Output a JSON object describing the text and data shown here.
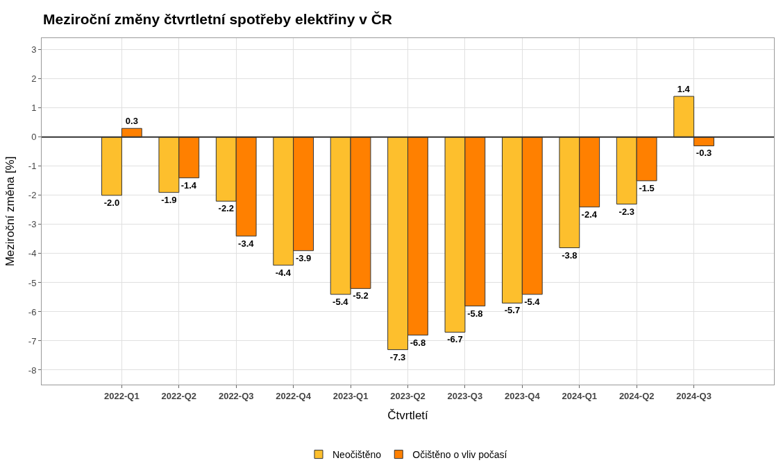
{
  "chart_data": {
    "type": "bar",
    "title": "Meziroční změny čtvrtletní spotřeby elektřiny v ČR",
    "xlabel": "Čtvrtletí",
    "ylabel": "Meziroční změna [%]",
    "categories": [
      "2022-Q1",
      "2022-Q2",
      "2022-Q3",
      "2022-Q4",
      "2023-Q1",
      "2023-Q2",
      "2023-Q3",
      "2023-Q4",
      "2024-Q1",
      "2024-Q2",
      "2024-Q3"
    ],
    "series": [
      {
        "name": "Neočištěno",
        "color": "#fdbf2d",
        "values": [
          -2.0,
          -1.9,
          -2.2,
          -4.4,
          -5.4,
          -7.3,
          -6.7,
          -5.7,
          -3.8,
          -2.3,
          1.4
        ],
        "value_labels": [
          "-2.0",
          "-1.9",
          "-2.2",
          "-4.4",
          "-5.4",
          "-7.3",
          "-6.7",
          "-5.7",
          "-3.8",
          "-2.3",
          "1.4"
        ]
      },
      {
        "name": "Očištěno o vliv počasí",
        "color": "#ff8000",
        "values": [
          0.3,
          -1.4,
          -3.4,
          -3.9,
          -5.2,
          -6.8,
          -5.8,
          -5.4,
          -2.4,
          -1.5,
          -0.3
        ],
        "value_labels": [
          "0.3",
          "-1.4",
          "-3.4",
          "-3.9",
          "-5.2",
          "-6.8",
          "-5.8",
          "-5.4",
          "-2.4",
          "-1.5",
          "-0.3"
        ]
      }
    ],
    "ylim": [
      -8.5,
      3.4
    ],
    "yticks": [
      -8,
      -7,
      -6,
      -5,
      -4,
      -3,
      -2,
      -1,
      0,
      1,
      2,
      3
    ],
    "ref_lines": [
      {
        "axis": "y",
        "value": 0,
        "color": "#333333"
      }
    ],
    "grid": true,
    "legend": "bottom"
  }
}
